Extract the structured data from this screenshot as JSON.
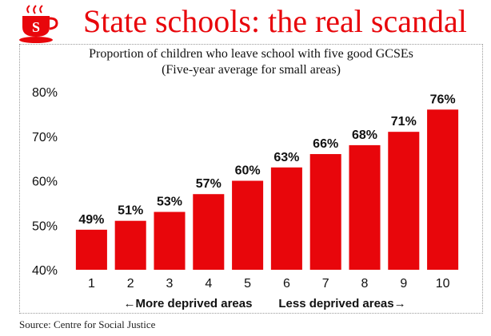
{
  "header": {
    "title": "State schools: the real scandal",
    "logo_letter": "S"
  },
  "colors": {
    "accent": "#e8060b",
    "bar": "#e8060b"
  },
  "chart_data": {
    "type": "bar",
    "title": "Proportion of children who leave school with five good GCSEs",
    "subtitle": "(Five-year average for small areas)",
    "categories": [
      "1",
      "2",
      "3",
      "4",
      "5",
      "6",
      "7",
      "8",
      "9",
      "10"
    ],
    "values": [
      49,
      51,
      53,
      57,
      60,
      63,
      66,
      68,
      71,
      76
    ],
    "value_labels": [
      "49%",
      "51%",
      "53%",
      "57%",
      "60%",
      "63%",
      "66%",
      "68%",
      "71%",
      "76%"
    ],
    "ylim": [
      40,
      80
    ],
    "yticks": [
      40,
      50,
      60,
      70,
      80
    ],
    "ytick_labels": [
      "40%",
      "50%",
      "60%",
      "70%",
      "80%"
    ],
    "x_annotations": [
      "←More deprived areas",
      "Less deprived areas→"
    ],
    "grid": false,
    "legend": "none"
  },
  "footer": {
    "source": "Source: Centre for Social Justice"
  }
}
